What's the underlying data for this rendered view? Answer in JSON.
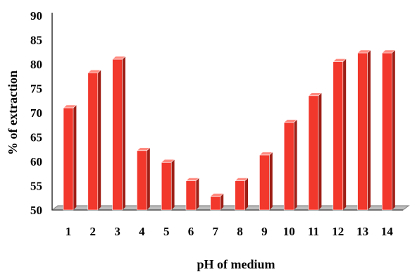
{
  "chart_data": {
    "type": "bar",
    "categories": [
      "1",
      "2",
      "3",
      "4",
      "5",
      "6",
      "7",
      "8",
      "9",
      "10",
      "11",
      "12",
      "13",
      "14"
    ],
    "series": [
      {
        "values": [
          71,
          78.2,
          81,
          62.2,
          59.8,
          56,
          52.8,
          56,
          61.3,
          68,
          73.5,
          80.5,
          82.3,
          82.3
        ]
      }
    ],
    "xlabel": "pH of medium",
    "ylabel": "% of extraction",
    "ylim": [
      50,
      90
    ],
    "yticks": [
      50,
      55,
      60,
      65,
      70,
      75,
      80,
      85,
      90
    ],
    "grid": false,
    "legend": "none",
    "style": "3d-column",
    "colors": {
      "bar_front": "#f2372c",
      "bar_side": "#9e1f16",
      "bar_top": "#ff8a80",
      "floor": "#8a8a8a"
    }
  }
}
